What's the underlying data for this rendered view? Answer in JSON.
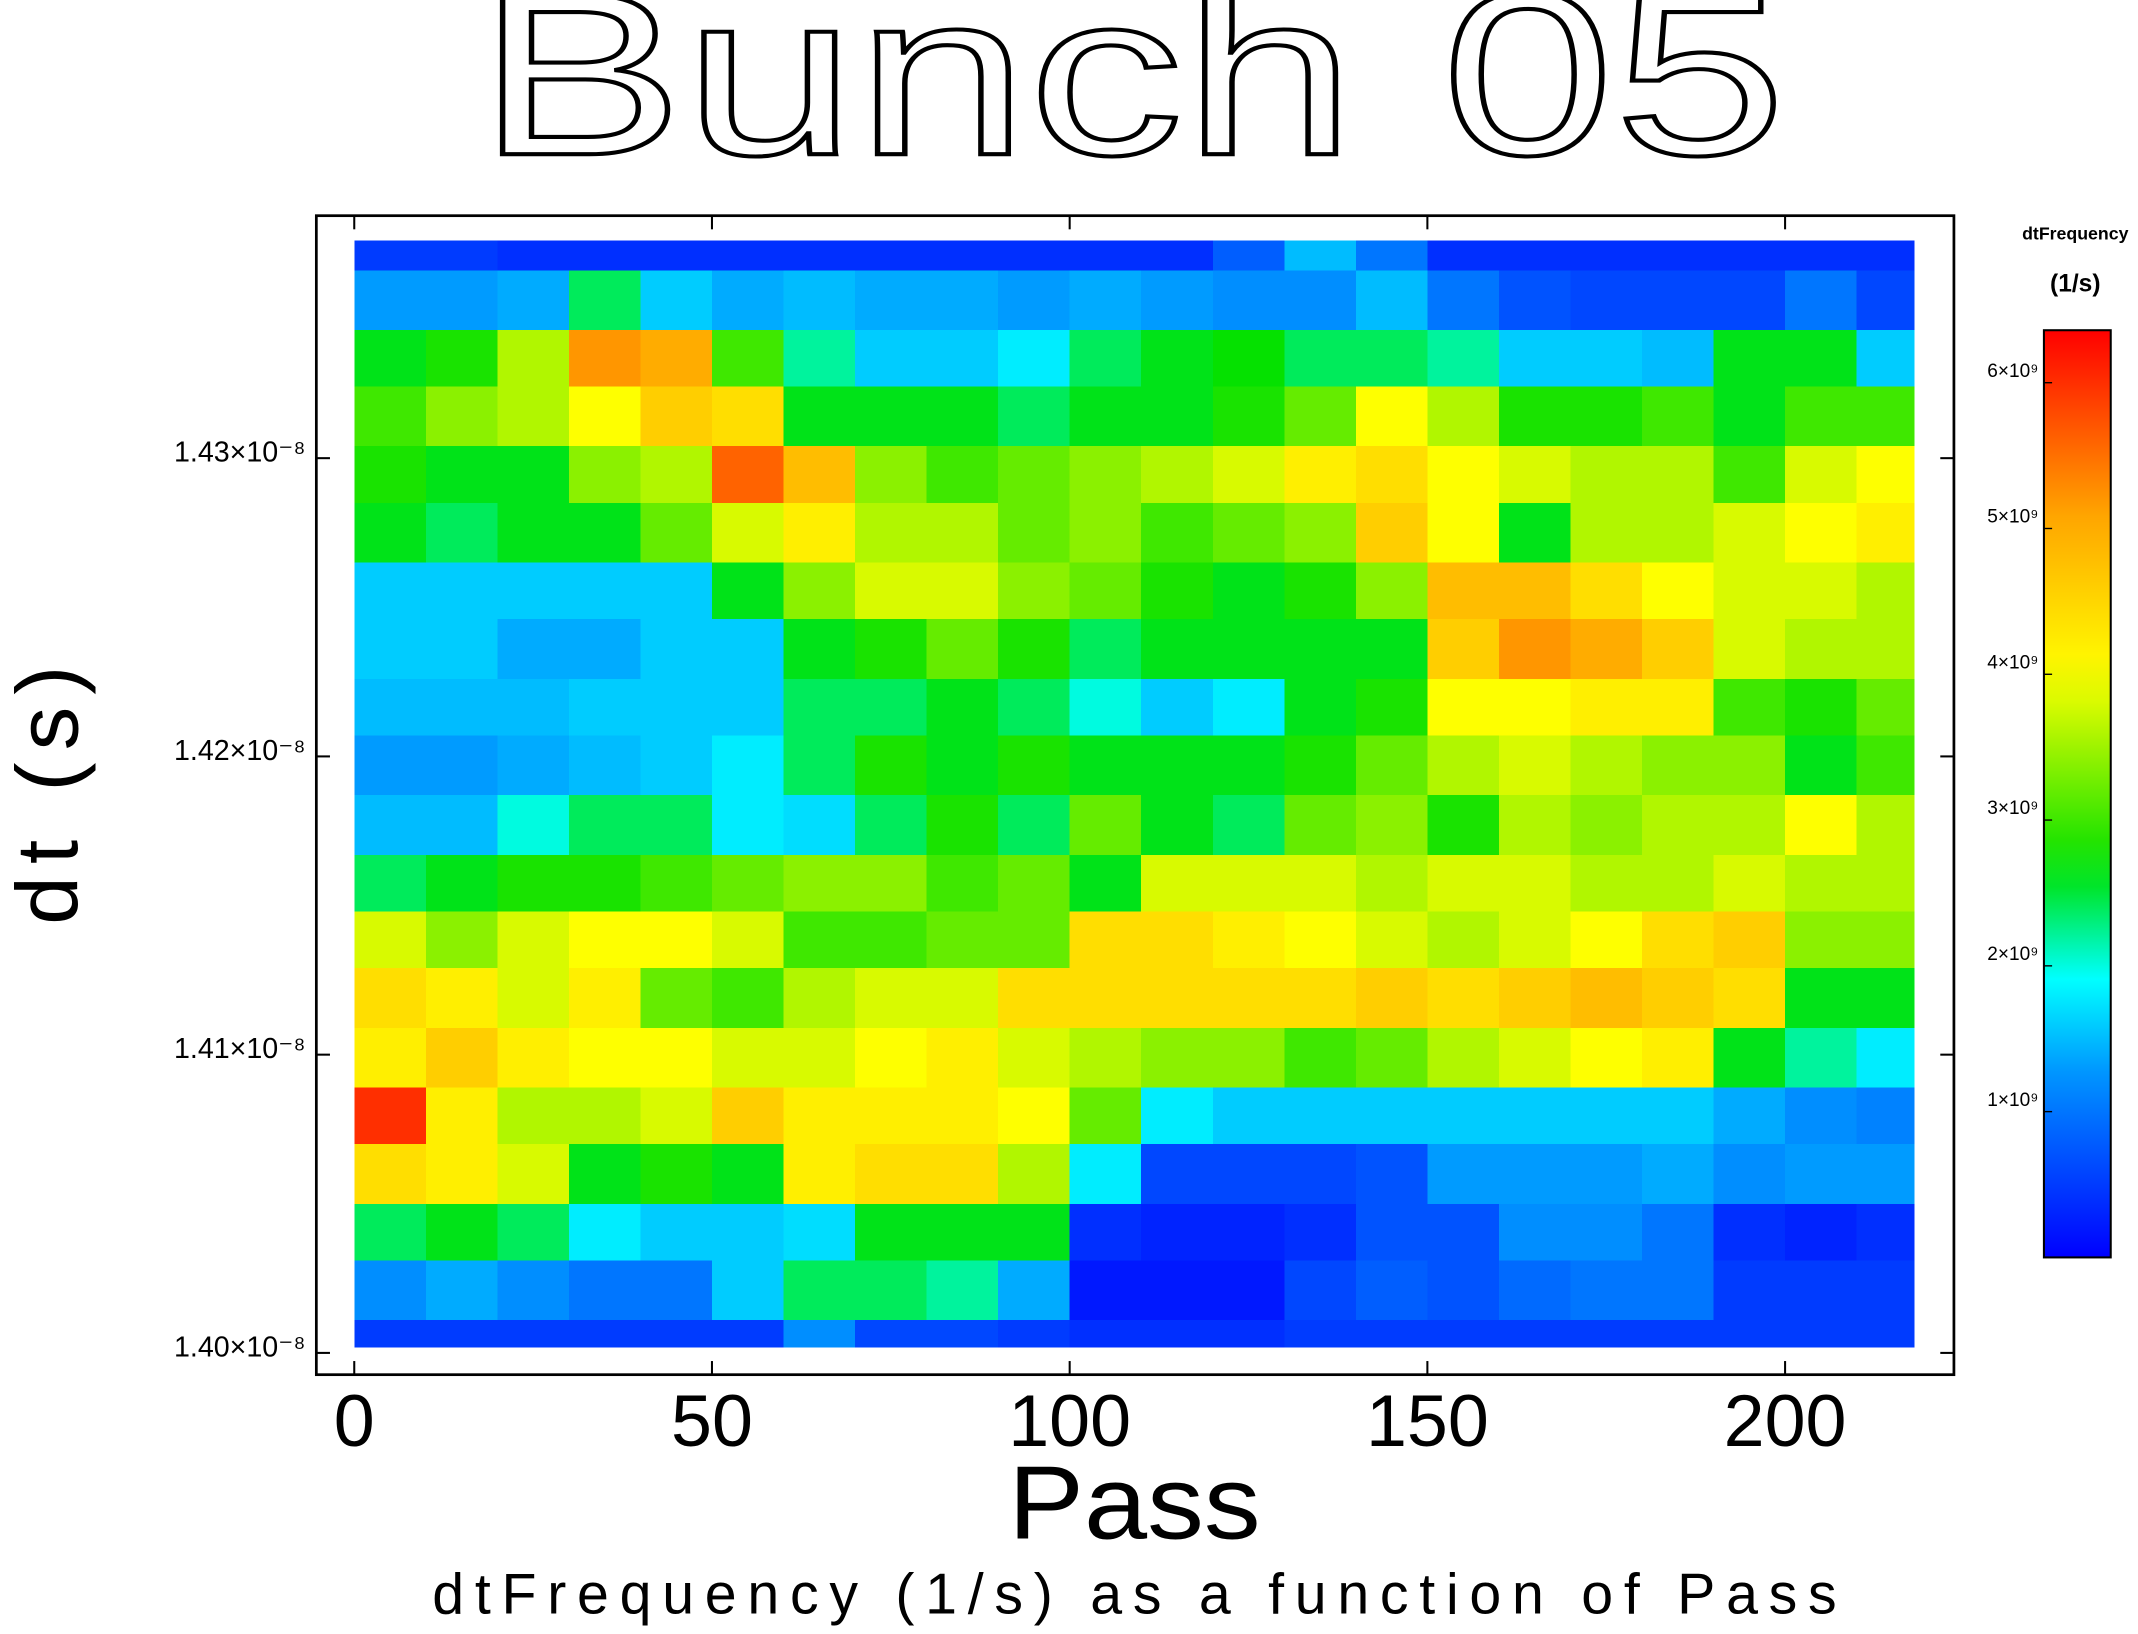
{
  "chart_data": {
    "type": "heatmap",
    "title": "Bunch 05",
    "xlabel": "Pass",
    "ylabel": "dt (s)",
    "caption": "dtFrequency (1/s) as a function of Pass",
    "colorbar_title": "dtFrequency",
    "colorbar_unit": "(1/s)",
    "colormap": "jet",
    "xlim": [
      -5.3,
      223.6
    ],
    "xticks": [
      0,
      50,
      100,
      150,
      200
    ],
    "ylim": [
      1.39927e-08,
      1.43813e-08
    ],
    "yticks": [
      {
        "value": 1.4e-08,
        "label": "1.40×10⁻⁸"
      },
      {
        "value": 1.41e-08,
        "label": "1.41×10⁻⁸"
      },
      {
        "value": 1.42e-08,
        "label": "1.42×10⁻⁸"
      },
      {
        "value": 1.43e-08,
        "label": "1.43×10⁻⁸"
      }
    ],
    "clim": [
      0,
      6360000000.0
    ],
    "cticks": [
      {
        "value": 1000000000.0,
        "label": "1×10⁹"
      },
      {
        "value": 2000000000.0,
        "label": "2×10⁹"
      },
      {
        "value": 3000000000.0,
        "label": "3×10⁹"
      },
      {
        "value": 4000000000.0,
        "label": "4×10⁹"
      },
      {
        "value": 5000000000.0,
        "label": "5×10⁹"
      },
      {
        "value": 6000000000.0,
        "label": "6×10⁹"
      }
    ],
    "xbins": [
      0,
      10,
      20,
      30,
      40,
      50,
      60,
      70,
      80,
      90,
      100,
      110,
      120,
      130,
      140,
      150,
      160,
      170,
      180,
      190,
      200,
      210,
      218
    ],
    "ybins": [
      1.4373e-08,
      1.4363e-08,
      1.4343e-08,
      1.4324e-08,
      1.4304e-08,
      1.4285e-08,
      1.4265e-08,
      1.4246e-08,
      1.4226e-08,
      1.4207e-08,
      1.4187e-08,
      1.4167e-08,
      1.4148e-08,
      1.4129e-08,
      1.4109e-08,
      1.4089e-08,
      1.407e-08,
      1.405e-08,
      1.4031e-08,
      1.4011e-08,
      1.4002e-08
    ],
    "z": [
      [
        500000000.0,
        500000000.0,
        400000000.0,
        400000000.0,
        400000000.0,
        400000000.0,
        400000000.0,
        400000000.0,
        400000000.0,
        400000000.0,
        400000000.0,
        400000000.0,
        800000000.0,
        1500000000.0,
        1000000000.0,
        400000000.0,
        400000000.0,
        400000000.0,
        400000000.0,
        400000000.0,
        400000000.0,
        400000000.0
      ],
      [
        1300000000.0,
        1300000000.0,
        1400000000.0,
        2400000000.0,
        1600000000.0,
        1400000000.0,
        1500000000.0,
        1400000000.0,
        1400000000.0,
        1300000000.0,
        1400000000.0,
        1300000000.0,
        1200000000.0,
        1200000000.0,
        1500000000.0,
        1000000000.0,
        700000000.0,
        600000000.0,
        600000000.0,
        600000000.0,
        1000000000.0,
        600000000.0
      ],
      [
        2600000000.0,
        2800000000.0,
        3600000000.0,
        5200000000.0,
        5000000000.0,
        3000000000.0,
        2200000000.0,
        1600000000.0,
        1600000000.0,
        1800000000.0,
        2400000000.0,
        2600000000.0,
        2700000000.0,
        2400000000.0,
        2400000000.0,
        2200000000.0,
        1600000000.0,
        1600000000.0,
        1500000000.0,
        2600000000.0,
        2600000000.0,
        1600000000.0
      ],
      [
        3000000000.0,
        3400000000.0,
        3600000000.0,
        4000000000.0,
        4600000000.0,
        4400000000.0,
        2600000000.0,
        2600000000.0,
        2600000000.0,
        2400000000.0,
        2600000000.0,
        2600000000.0,
        2800000000.0,
        3200000000.0,
        4000000000.0,
        3600000000.0,
        2800000000.0,
        2800000000.0,
        3000000000.0,
        2600000000.0,
        3000000000.0,
        3000000000.0
      ],
      [
        2800000000.0,
        2600000000.0,
        2600000000.0,
        3400000000.0,
        3600000000.0,
        5600000000.0,
        4800000000.0,
        3400000000.0,
        3000000000.0,
        3200000000.0,
        3400000000.0,
        3600000000.0,
        3800000000.0,
        4200000000.0,
        4400000000.0,
        4000000000.0,
        3800000000.0,
        3600000000.0,
        3600000000.0,
        3000000000.0,
        3800000000.0,
        4000000000.0
      ],
      [
        2600000000.0,
        2400000000.0,
        2600000000.0,
        2600000000.0,
        3200000000.0,
        3800000000.0,
        4200000000.0,
        3600000000.0,
        3600000000.0,
        3200000000.0,
        3400000000.0,
        3000000000.0,
        3200000000.0,
        3400000000.0,
        4600000000.0,
        4000000000.0,
        2600000000.0,
        3600000000.0,
        3600000000.0,
        3800000000.0,
        4000000000.0,
        4200000000.0
      ],
      [
        1600000000.0,
        1600000000.0,
        1600000000.0,
        1600000000.0,
        1600000000.0,
        2600000000.0,
        3400000000.0,
        3800000000.0,
        3800000000.0,
        3400000000.0,
        3200000000.0,
        2800000000.0,
        2600000000.0,
        2800000000.0,
        3400000000.0,
        4800000000.0,
        4800000000.0,
        4400000000.0,
        4000000000.0,
        3800000000.0,
        3800000000.0,
        3600000000.0
      ],
      [
        1600000000.0,
        1600000000.0,
        1400000000.0,
        1400000000.0,
        1600000000.0,
        1600000000.0,
        2600000000.0,
        2800000000.0,
        3200000000.0,
        2800000000.0,
        2400000000.0,
        2600000000.0,
        2600000000.0,
        2600000000.0,
        2600000000.0,
        4600000000.0,
        5200000000.0,
        5000000000.0,
        4600000000.0,
        3800000000.0,
        3600000000.0,
        3600000000.0
      ],
      [
        1500000000.0,
        1500000000.0,
        1500000000.0,
        1600000000.0,
        1600000000.0,
        1600000000.0,
        2400000000.0,
        2400000000.0,
        2600000000.0,
        2400000000.0,
        2000000000.0,
        1600000000.0,
        1800000000.0,
        2600000000.0,
        2800000000.0,
        4000000000.0,
        4000000000.0,
        4200000000.0,
        4200000000.0,
        3000000000.0,
        2800000000.0,
        3200000000.0
      ],
      [
        1300000000.0,
        1300000000.0,
        1400000000.0,
        1500000000.0,
        1600000000.0,
        1800000000.0,
        2400000000.0,
        2800000000.0,
        2600000000.0,
        2800000000.0,
        2600000000.0,
        2600000000.0,
        2600000000.0,
        2800000000.0,
        3200000000.0,
        3600000000.0,
        3800000000.0,
        3600000000.0,
        3400000000.0,
        3400000000.0,
        2600000000.0,
        3000000000.0
      ],
      [
        1500000000.0,
        1500000000.0,
        2000000000.0,
        2400000000.0,
        2400000000.0,
        1800000000.0,
        1700000000.0,
        2400000000.0,
        2800000000.0,
        2400000000.0,
        3200000000.0,
        2600000000.0,
        2400000000.0,
        3200000000.0,
        3400000000.0,
        2800000000.0,
        3600000000.0,
        3400000000.0,
        3600000000.0,
        3600000000.0,
        4000000000.0,
        3600000000.0
      ],
      [
        2400000000.0,
        2600000000.0,
        2800000000.0,
        2800000000.0,
        3000000000.0,
        3200000000.0,
        3400000000.0,
        3400000000.0,
        3000000000.0,
        3200000000.0,
        2600000000.0,
        3800000000.0,
        3800000000.0,
        3800000000.0,
        3600000000.0,
        3800000000.0,
        3800000000.0,
        3600000000.0,
        3600000000.0,
        3800000000.0,
        3600000000.0,
        3600000000.0
      ],
      [
        3800000000.0,
        3400000000.0,
        3800000000.0,
        4000000000.0,
        4000000000.0,
        3800000000.0,
        3000000000.0,
        3000000000.0,
        3200000000.0,
        3200000000.0,
        4400000000.0,
        4400000000.0,
        4200000000.0,
        4000000000.0,
        3800000000.0,
        3600000000.0,
        3800000000.0,
        4000000000.0,
        4400000000.0,
        4600000000.0,
        3400000000.0,
        3400000000.0
      ],
      [
        4400000000.0,
        4200000000.0,
        3800000000.0,
        4200000000.0,
        3200000000.0,
        3000000000.0,
        3600000000.0,
        3800000000.0,
        3800000000.0,
        4400000000.0,
        4400000000.0,
        4400000000.0,
        4400000000.0,
        4400000000.0,
        4600000000.0,
        4400000000.0,
        4600000000.0,
        4800000000.0,
        4600000000.0,
        4400000000.0,
        2600000000.0,
        2600000000.0
      ],
      [
        4200000000.0,
        4600000000.0,
        4200000000.0,
        4000000000.0,
        4000000000.0,
        3800000000.0,
        3800000000.0,
        4000000000.0,
        4200000000.0,
        3800000000.0,
        3600000000.0,
        3400000000.0,
        3400000000.0,
        3000000000.0,
        3200000000.0,
        3600000000.0,
        3800000000.0,
        4000000000.0,
        4200000000.0,
        2600000000.0,
        2200000000.0,
        1800000000.0
      ],
      [
        6000000000.0,
        4200000000.0,
        3600000000.0,
        3600000000.0,
        3800000000.0,
        4600000000.0,
        4200000000.0,
        4200000000.0,
        4200000000.0,
        4000000000.0,
        3200000000.0,
        1800000000.0,
        1600000000.0,
        1600000000.0,
        1600000000.0,
        1600000000.0,
        1600000000.0,
        1600000000.0,
        1600000000.0,
        1400000000.0,
        1200000000.0,
        1100000000.0
      ],
      [
        4400000000.0,
        4200000000.0,
        3800000000.0,
        2600000000.0,
        2800000000.0,
        2600000000.0,
        4200000000.0,
        4400000000.0,
        4400000000.0,
        3600000000.0,
        1800000000.0,
        600000000.0,
        600000000.0,
        600000000.0,
        700000000.0,
        1300000000.0,
        1300000000.0,
        1300000000.0,
        1400000000.0,
        1200000000.0,
        1300000000.0,
        1300000000.0
      ],
      [
        2400000000.0,
        2600000000.0,
        2400000000.0,
        1800000000.0,
        1600000000.0,
        1600000000.0,
        1700000000.0,
        2600000000.0,
        2600000000.0,
        2600000000.0,
        400000000.0,
        300000000.0,
        300000000.0,
        400000000.0,
        700000000.0,
        700000000.0,
        1200000000.0,
        1200000000.0,
        1000000000.0,
        400000000.0,
        300000000.0,
        400000000.0
      ],
      [
        1200000000.0,
        1400000000.0,
        1200000000.0,
        1000000000.0,
        1000000000.0,
        1600000000.0,
        2400000000.0,
        2400000000.0,
        2200000000.0,
        1400000000.0,
        200000000.0,
        200000000.0,
        200000000.0,
        600000000.0,
        800000000.0,
        700000000.0,
        900000000.0,
        1000000000.0,
        1000000000.0,
        500000000.0,
        500000000.0,
        500000000.0
      ],
      [
        500000000.0,
        500000000.0,
        500000000.0,
        500000000.0,
        500000000.0,
        500000000.0,
        1200000000.0,
        600000000.0,
        600000000.0,
        500000000.0,
        400000000.0,
        400000000.0,
        400000000.0,
        500000000.0,
        500000000.0,
        500000000.0,
        500000000.0,
        500000000.0,
        500000000.0,
        500000000.0,
        500000000.0,
        500000000.0
      ]
    ]
  }
}
